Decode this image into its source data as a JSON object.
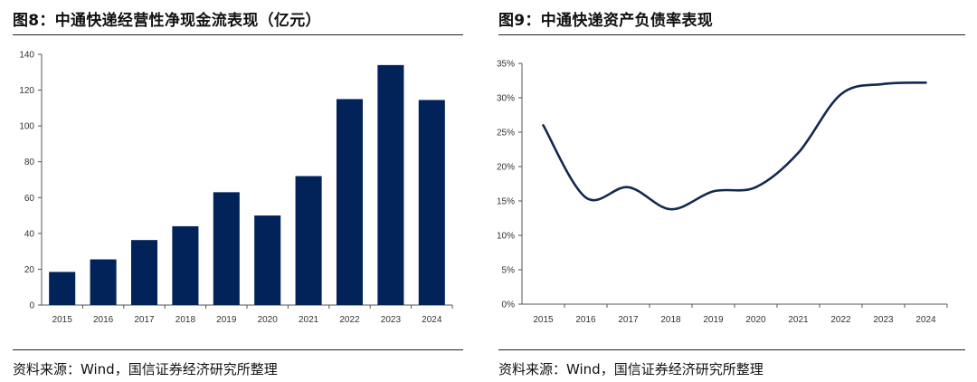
{
  "colors": {
    "bar": "#012359",
    "line": "#12294f",
    "axis": "#555555"
  },
  "left": {
    "title": "图8：中通快递经营性净现金流表现（亿元）",
    "source": "资料来源：Wind，国信证券经济研究所整理"
  },
  "right": {
    "title": "图9：中通快递资产负债率表现",
    "source": "资料来源：Wind，国信证券经济研究所整理"
  },
  "chart_data": [
    {
      "type": "bar",
      "title": "图8：中通快递经营性净现金流表现（亿元）",
      "categories": [
        "2015",
        "2016",
        "2017",
        "2018",
        "2019",
        "2020",
        "2021",
        "2022",
        "2023",
        "2024"
      ],
      "values": [
        18.5,
        25.5,
        36.3,
        44,
        63,
        50,
        72,
        115,
        134,
        114.5
      ],
      "ylim": [
        0,
        140
      ],
      "yticks": [
        0,
        20,
        40,
        60,
        80,
        100,
        120,
        140
      ],
      "ytick_labels": [
        "0",
        "20",
        "40",
        "60",
        "80",
        "100",
        "120",
        "140"
      ],
      "xlabel": "",
      "ylabel": "",
      "grid": false
    },
    {
      "type": "line",
      "title": "图9：中通快递资产负债率表现",
      "x": [
        "2015",
        "2016",
        "2017",
        "2018",
        "2019",
        "2020",
        "2021",
        "2022",
        "2023",
        "2024"
      ],
      "series": [
        {
          "name": "资产负债率",
          "values": [
            0.26,
            0.155,
            0.17,
            0.138,
            0.164,
            0.17,
            0.22,
            0.305,
            0.32,
            0.322
          ]
        }
      ],
      "ylim": [
        0,
        0.35
      ],
      "yticks": [
        0,
        0.05,
        0.1,
        0.15,
        0.2,
        0.25,
        0.3,
        0.35
      ],
      "ytick_labels": [
        "0%",
        "5%",
        "10%",
        "15%",
        "20%",
        "25%",
        "30%",
        "35%"
      ],
      "xlabel": "",
      "ylabel": "",
      "grid": false
    }
  ]
}
